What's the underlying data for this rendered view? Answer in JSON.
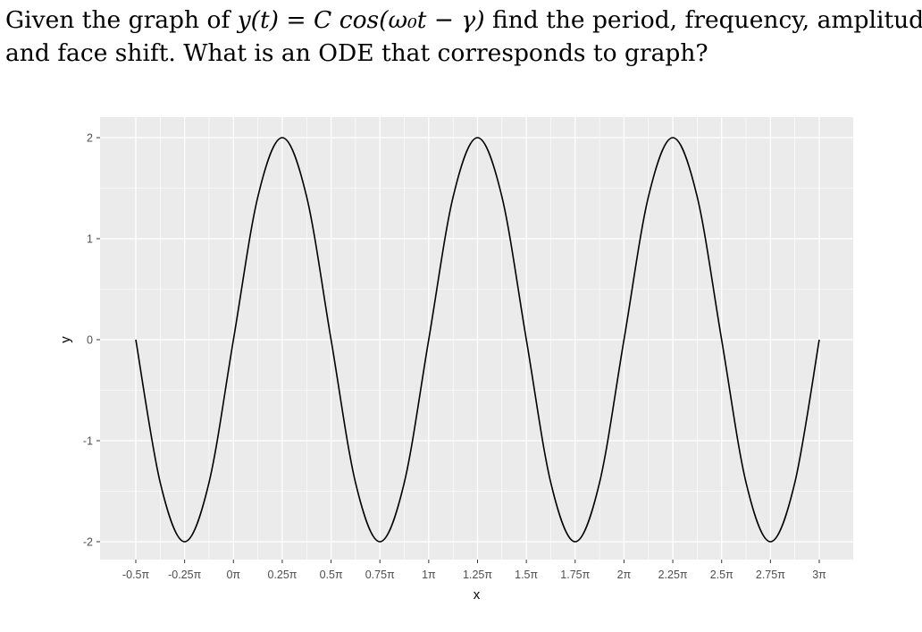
{
  "question": {
    "line1_pre": "Given the graph of ",
    "line1_math": "y(t) = C cos(ω₀t − γ)",
    "line1_post": " find the period, frequency, amplitude,",
    "line2": "and face shift. What is an ODE that corresponds to graph?"
  },
  "chart_data": {
    "type": "line",
    "title": "",
    "xlabel": "x",
    "ylabel": "y",
    "xlim": [
      -0.5,
      3.0
    ],
    "ylim": [
      -2,
      2
    ],
    "x_unit": "π",
    "x_ticks": [
      -0.5,
      -0.25,
      0,
      0.25,
      0.5,
      0.75,
      1,
      1.25,
      1.5,
      1.75,
      2,
      2.25,
      2.5,
      2.75,
      3
    ],
    "x_tick_labels": [
      "-0.5π",
      "-0.25π",
      "0π",
      "0.25π",
      "0.5π",
      "0.75π",
      "1π",
      "1.25π",
      "1.5π",
      "1.75π",
      "2π",
      "2.25π",
      "2.5π",
      "2.75π",
      "3π"
    ],
    "y_ticks": [
      -2,
      -1,
      0,
      1,
      2
    ],
    "y_tick_labels": [
      "-2",
      "-1",
      "0",
      "1",
      "2"
    ],
    "grid": true,
    "background": "#ebebeb",
    "grid_color": "#ffffff",
    "line_color": "#000000",
    "series": [
      {
        "x": [
          -0.5,
          -0.375,
          -0.25,
          -0.125,
          0,
          0.125,
          0.25,
          0.375,
          0.5,
          0.625,
          0.75,
          0.875,
          1,
          1.125,
          1.25,
          1.375,
          1.5,
          1.625,
          1.75,
          1.875,
          2,
          2.125,
          2.25,
          2.375,
          2.5,
          2.625,
          2.75,
          2.875,
          3
        ],
        "y": [
          0,
          -1.414,
          -2,
          -1.414,
          0,
          1.414,
          2,
          1.414,
          0,
          -1.414,
          -2,
          -1.414,
          0,
          1.414,
          2,
          1.414,
          0,
          -1.414,
          -2,
          -1.414,
          0,
          1.414,
          2,
          1.414,
          0,
          -1.414,
          -2,
          -1.414,
          0
        ]
      }
    ]
  }
}
